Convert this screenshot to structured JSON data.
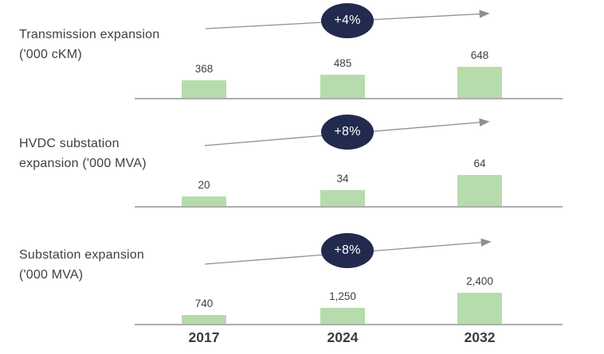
{
  "chart_data": {
    "type": "bar",
    "title": "",
    "categories": [
      "2017",
      "2024",
      "2032"
    ],
    "grid": false,
    "legend_position": "none",
    "panels": [
      {
        "label_lines": [
          "Transmission expansion",
          "('000 cKM)"
        ],
        "values": [
          368,
          485,
          648
        ],
        "value_labels": [
          "368",
          "485",
          "648"
        ],
        "growth_label": "+4%"
      },
      {
        "label_lines": [
          "HVDC substation",
          "expansion ('000 MVA)"
        ],
        "values": [
          20,
          34,
          64
        ],
        "value_labels": [
          "20",
          "34",
          "64"
        ],
        "growth_label": "+8%"
      },
      {
        "label_lines": [
          "Substation expansion",
          "('000 MVA)"
        ],
        "values": [
          740,
          1250,
          2400
        ],
        "value_labels": [
          "740",
          "1,250",
          "2,400"
        ],
        "growth_label": "+8%"
      }
    ],
    "colors": {
      "bar_fill": "#b6dcab",
      "badge_fill": "#222a4d",
      "badge_text": "#ffffff",
      "arrow": "#8f8f8f",
      "baseline": "#aeaeae",
      "label_text": "#3f3f3f",
      "value_text": "#404040",
      "year_text": "#3b3b3b",
      "background": "#ffffff"
    }
  }
}
